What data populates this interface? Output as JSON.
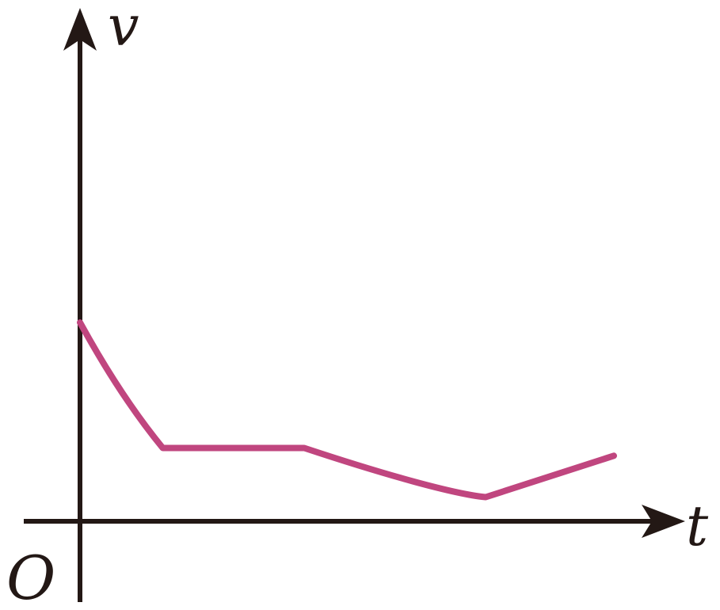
{
  "chart_data": {
    "type": "line",
    "title": "",
    "xlabel": "t",
    "ylabel": "v",
    "origin_label": "O",
    "xlim": [
      0,
      10
    ],
    "ylim": [
      0,
      10
    ],
    "grid": false,
    "axis_color": "#231815",
    "series": [
      {
        "color": "#C0467F",
        "segments": [
          {
            "shape": "curve",
            "x": [
              0,
              0.5,
              1.0,
              1.55
            ],
            "y": [
              5.1,
              3.85,
              2.8,
              1.88
            ]
          },
          {
            "shape": "line",
            "x": [
              1.55,
              4.2
            ],
            "y": [
              1.88,
              1.88
            ]
          },
          {
            "shape": "curve",
            "x": [
              4.2,
              5.7,
              7.0,
              7.6
            ],
            "y": [
              1.88,
              1.2,
              0.7,
              0.62
            ]
          },
          {
            "shape": "line",
            "x": [
              7.6,
              10.0
            ],
            "y": [
              0.62,
              1.68
            ]
          }
        ]
      }
    ]
  }
}
